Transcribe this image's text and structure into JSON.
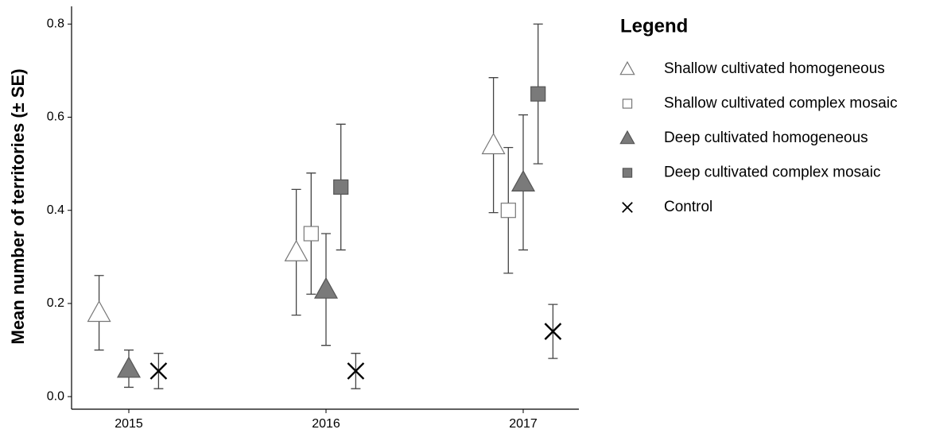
{
  "chart_data": {
    "type": "errorbar",
    "y_label": "Mean number of territories (± SE)",
    "legend_title": "Legend",
    "legend_position": "right",
    "categories": [
      "2015",
      "2016",
      "2017"
    ],
    "ylim": [
      -0.027,
      0.838
    ],
    "yticks": [
      {
        "value": 0,
        "label": "0.0"
      },
      0.2,
      0.4,
      0.6,
      0.8
    ],
    "series": [
      {
        "name": "Shallow cultivated homogeneous",
        "marker": "triangle",
        "color": "#ffffff",
        "values": [
          0.18,
          0.31,
          0.54
        ],
        "errors": [
          0.08,
          0.135,
          0.145
        ]
      },
      {
        "name": "Shallow cultivated complex mosaic",
        "marker": "square",
        "color": "#ffffff",
        "values": [
          null,
          0.35,
          0.4
        ],
        "errors": [
          null,
          0.13,
          0.135
        ]
      },
      {
        "name": "Deep cultivated homogeneous",
        "marker": "triangle",
        "color": "#7a7a7a",
        "values": [
          0.06,
          0.23,
          0.46
        ],
        "errors": [
          0.04,
          0.12,
          0.145
        ]
      },
      {
        "name": "Deep cultivated complex mosaic",
        "marker": "square",
        "color": "#7a7a7a",
        "values": [
          null,
          0.45,
          0.65
        ],
        "errors": [
          null,
          0.135,
          0.15
        ]
      },
      {
        "name": "Control",
        "marker": "x",
        "color": "#000000",
        "values": [
          0.055,
          0.055,
          0.14
        ],
        "errors": [
          0.038,
          0.038,
          0.058
        ]
      }
    ]
  }
}
